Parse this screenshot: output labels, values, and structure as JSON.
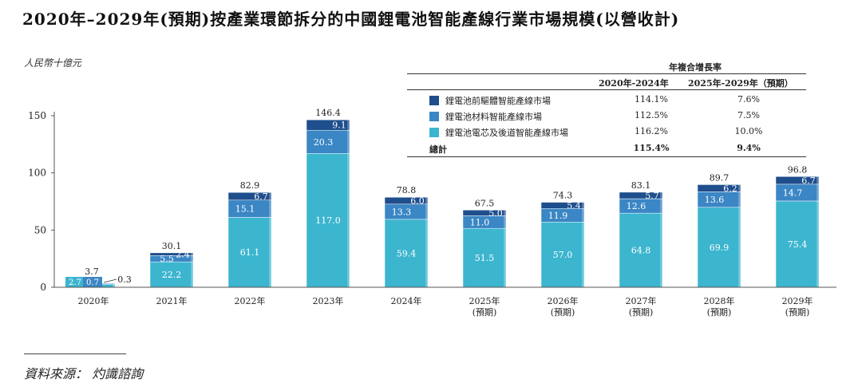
{
  "title": "2020年–2029年(預期)按產業環節拆分的中國鋰電池智能產線行業市場規模(以營收計)",
  "unit_label": "人民幣十億元",
  "source": "資料來源： 灼識諮詢",
  "legend": {
    "cagr_title": "年複合增長率",
    "col1": "2020年-2024年",
    "col2": "2025年-2029年（預期）",
    "rows": [
      {
        "name": "鋰電池前驅體智能產線市場",
        "c1": "114.1%",
        "c2": "7.6%",
        "color": "#1f4e8c"
      },
      {
        "name": "鋰電池材料智能產線市場",
        "c1": "112.5%",
        "c2": "7.5%",
        "color": "#3b86c4"
      },
      {
        "name": "鋰電池電芯及後道智能產線市場",
        "c1": "116.2%",
        "c2": "10.0%",
        "color": "#3cb5cf"
      }
    ],
    "total": {
      "name": "總計",
      "c1": "115.4%",
      "c2": "9.4%"
    }
  },
  "chart_data": {
    "type": "bar",
    "stacked": true,
    "categories": [
      "2020年",
      "2021年",
      "2022年",
      "2023年",
      "2024年",
      "2025年\n(預期)",
      "2026年\n(預期)",
      "2027年\n(預期)",
      "2028年\n(預期)",
      "2029年\n(預期)"
    ],
    "series": [
      {
        "name": "鋰電池電芯及後道智能產線市場",
        "color": "#3cb5cf",
        "values": [
          2.7,
          22.2,
          61.1,
          117.0,
          59.4,
          51.5,
          57.0,
          64.8,
          69.9,
          75.4
        ],
        "labels": [
          "2.7",
          "22.2",
          "61.1",
          "117.0",
          "59.4",
          "51.5",
          "57.0",
          "64.8",
          "69.9",
          "75.4"
        ]
      },
      {
        "name": "鋰電池材料智能產線市場",
        "color": "#3b86c4",
        "values": [
          0.7,
          5.5,
          15.1,
          20.3,
          13.3,
          11.0,
          11.9,
          12.6,
          13.6,
          14.7
        ],
        "labels": [
          "0.7",
          "5.5",
          "15.1",
          "20.3",
          "13.3",
          "11.0",
          "11.9",
          "12.6",
          "13.6",
          "14.7"
        ]
      },
      {
        "name": "鋰電池前驅體智能產線市場",
        "color": "#1f4e8c",
        "values": [
          0.3,
          2.4,
          6.7,
          9.1,
          6.0,
          5.0,
          5.4,
          5.7,
          6.2,
          6.7
        ],
        "labels": [
          "0.3",
          "2.4",
          "6.7",
          "9.1",
          "6.0",
          "5.0",
          "5.4",
          "5.7",
          "6.2",
          "6.7"
        ]
      }
    ],
    "totals": [
      "3.7",
      "30.1",
      "82.9",
      "146.4",
      "78.8",
      "67.5",
      "74.3",
      "83.1",
      "89.7",
      "96.8"
    ],
    "yticks": [
      "0",
      "50",
      "100",
      "150"
    ],
    "ylim": [
      0,
      150
    ]
  }
}
